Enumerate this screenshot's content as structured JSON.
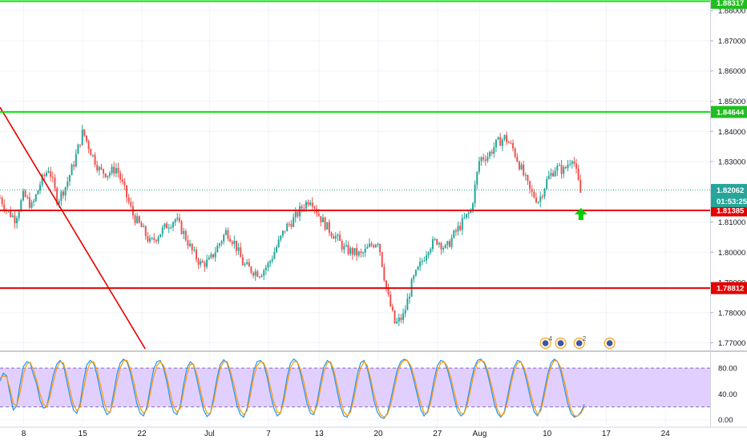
{
  "chart_data": [
    {
      "type": "candlestick",
      "title": "",
      "y_ticks": [
        "1.88000",
        "1.87000",
        "1.86000",
        "1.85000",
        "1.84000",
        "1.83000",
        "1.82000",
        "1.81000",
        "1.80000",
        "1.79000",
        "1.78000",
        "1.77000"
      ],
      "ylim": [
        1.7675,
        1.8835
      ],
      "x_ticks": [
        "8",
        "15",
        "22",
        "Jul",
        "7",
        "13",
        "20",
        "27",
        "Aug",
        "10",
        "17",
        "24"
      ],
      "x_tick_days": [
        8,
        15,
        22,
        30,
        37,
        43,
        50,
        57,
        62,
        70,
        77,
        84
      ],
      "x_range_days": [
        5.2,
        89.3
      ],
      "last_bar_day": 74,
      "grid": true,
      "price_anchors": [
        [
          5.2,
          1.818
        ],
        [
          6,
          1.814
        ],
        [
          7,
          1.811
        ],
        [
          8,
          1.819
        ],
        [
          9,
          1.815
        ],
        [
          10,
          1.823
        ],
        [
          11,
          1.828
        ],
        [
          12,
          1.817
        ],
        [
          13,
          1.822
        ],
        [
          14,
          1.83
        ],
        [
          15,
          1.84
        ],
        [
          16,
          1.833
        ],
        [
          17,
          1.827
        ],
        [
          18,
          1.826
        ],
        [
          19,
          1.828
        ],
        [
          20,
          1.82
        ],
        [
          21,
          1.812
        ],
        [
          22,
          1.808
        ],
        [
          23,
          1.803
        ],
        [
          24,
          1.806
        ],
        [
          25,
          1.809
        ],
        [
          26,
          1.811
        ],
        [
          27,
          1.806
        ],
        [
          28,
          1.8
        ],
        [
          29,
          1.796
        ],
        [
          30,
          1.797
        ],
        [
          31,
          1.802
        ],
        [
          32,
          1.807
        ],
        [
          33,
          1.803
        ],
        [
          34,
          1.796
        ],
        [
          35,
          1.794
        ],
        [
          36,
          1.793
        ],
        [
          37,
          1.796
        ],
        [
          38,
          1.802
        ],
        [
          39,
          1.808
        ],
        [
          40,
          1.811
        ],
        [
          41,
          1.815
        ],
        [
          42,
          1.818
        ],
        [
          43,
          1.812
        ],
        [
          44,
          1.808
        ],
        [
          45,
          1.805
        ],
        [
          46,
          1.801
        ],
        [
          47,
          1.8
        ],
        [
          48,
          1.799
        ],
        [
          49,
          1.802
        ],
        [
          50,
          1.804
        ],
        [
          51,
          1.787
        ],
        [
          52,
          1.776
        ],
        [
          53,
          1.779
        ],
        [
          54,
          1.79
        ],
        [
          55,
          1.796
        ],
        [
          56,
          1.802
        ],
        [
          57,
          1.804
        ],
        [
          58,
          1.801
        ],
        [
          59,
          1.806
        ],
        [
          60,
          1.81
        ],
        [
          61,
          1.814
        ],
        [
          62,
          1.831
        ],
        [
          63,
          1.832
        ],
        [
          64,
          1.836
        ],
        [
          65,
          1.838
        ],
        [
          66,
          1.834
        ],
        [
          67,
          1.827
        ],
        [
          68,
          1.82
        ],
        [
          69,
          1.817
        ],
        [
          70,
          1.824
        ],
        [
          71,
          1.828
        ],
        [
          72,
          1.827
        ],
        [
          73,
          1.832
        ],
        [
          74,
          1.819
        ]
      ],
      "horizontal_lines": [
        {
          "price": 1.8831,
          "label": "1.88317",
          "color": "#00e600"
        },
        {
          "price": 1.84644,
          "label": "1.84644",
          "color": "#00e600"
        },
        {
          "price": 1.81385,
          "label": "1.81385",
          "color": "#e60000"
        },
        {
          "price": 1.78812,
          "label": "1.78812",
          "color": "#e60000"
        }
      ],
      "trend_line": {
        "color": "#e60000",
        "from": [
          5.2,
          1.848
        ],
        "to": [
          22.4,
          1.768
        ]
      },
      "current_price": {
        "price": 1.82062,
        "label": "1.82062",
        "countdown": "01:53:25",
        "color": "#26a69a"
      },
      "signal_arrow": {
        "day": 74,
        "price": 1.8128,
        "color": "#00d000",
        "icon": "up-arrow-icon"
      },
      "event_flags": [
        {
          "day": 69.8,
          "badge": "4"
        },
        {
          "day": 71.6,
          "badge": ""
        },
        {
          "day": 73.8,
          "badge": "2"
        },
        {
          "day": 77.4,
          "badge": ""
        }
      ],
      "colors": {
        "up": "#26a69a",
        "down": "#ef5350",
        "grid": "#f0f3fa",
        "axis_text": "#131722"
      }
    },
    {
      "type": "line",
      "title": "",
      "indicator": "stochastic",
      "y_ticks": [
        "80.00",
        "40.00",
        "0.00"
      ],
      "ylim": [
        -9,
        105
      ],
      "bands": {
        "upper": 80,
        "lower": 20,
        "fill": "#e1d0ff",
        "line": "#8a6bbe"
      },
      "series": [
        {
          "color": "#2196f3",
          "values": [
            60,
            72,
            68,
            40,
            15,
            22,
            55,
            82,
            90,
            88,
            70,
            55,
            30,
            18,
            20,
            45,
            70,
            86,
            92,
            85,
            60,
            35,
            15,
            10,
            25,
            60,
            85,
            92,
            88,
            70,
            45,
            20,
            8,
            12,
            40,
            70,
            88,
            94,
            90,
            74,
            50,
            25,
            10,
            6,
            20,
            50,
            78,
            90,
            92,
            80,
            58,
            30,
            12,
            8,
            22,
            55,
            80,
            90,
            85,
            62,
            38,
            15,
            5,
            10,
            35,
            65,
            86,
            93,
            88,
            70,
            46,
            22,
            8,
            4,
            18,
            48,
            76,
            90,
            92,
            86,
            66,
            40,
            18,
            6,
            10,
            36,
            66,
            88,
            94,
            90,
            72,
            48,
            24,
            10,
            8,
            28,
            58,
            82,
            92,
            88,
            70,
            44,
            20,
            6,
            4,
            16,
            42,
            70,
            88,
            92,
            80,
            56,
            30,
            12,
            4,
            2,
            10,
            30,
            55,
            78,
            90,
            94,
            92,
            80,
            60,
            38,
            16,
            6,
            12,
            34,
            62,
            84,
            92,
            90,
            78,
            58,
            34,
            14,
            6,
            10,
            30,
            58,
            80,
            92,
            94,
            88,
            72,
            50,
            26,
            10,
            4,
            12,
            36,
            62,
            82,
            92,
            90,
            76,
            54,
            30,
            12,
            6,
            18,
            44,
            70,
            88,
            94,
            90,
            74,
            50,
            26,
            10,
            4,
            6,
            12,
            24
          ]
        },
        {
          "color": "#ff9800",
          "values": [
            65,
            68,
            66,
            48,
            25,
            22,
            42,
            70,
            86,
            89,
            78,
            60,
            40,
            24,
            20,
            36,
            60,
            80,
            90,
            88,
            70,
            45,
            24,
            14,
            20,
            46,
            74,
            88,
            90,
            78,
            56,
            32,
            14,
            12,
            30,
            58,
            80,
            92,
            92,
            80,
            60,
            36,
            18,
            10,
            16,
            40,
            66,
            84,
            90,
            84,
            66,
            42,
            20,
            12,
            18,
            44,
            70,
            86,
            86,
            70,
            48,
            24,
            10,
            10,
            28,
            56,
            80,
            90,
            90,
            76,
            56,
            32,
            14,
            8,
            14,
            38,
            66,
            84,
            90,
            88,
            74,
            50,
            28,
            12,
            10,
            28,
            56,
            80,
            90,
            90,
            78,
            58,
            34,
            16,
            10,
            22,
            48,
            74,
            88,
            90,
            76,
            54,
            30,
            12,
            6,
            12,
            32,
            60,
            80,
            90,
            84,
            64,
            40,
            20,
            8,
            4,
            8,
            22,
            46,
            70,
            86,
            92,
            92,
            84,
            68,
            46,
            26,
            10,
            10,
            26,
            52,
            76,
            88,
            90,
            82,
            66,
            44,
            22,
            10,
            10,
            24,
            48,
            72,
            88,
            92,
            90,
            78,
            58,
            36,
            16,
            6,
            10,
            28,
            54,
            76,
            88,
            90,
            80,
            62,
            40,
            20,
            8,
            14,
            36,
            62,
            82,
            92,
            90,
            80,
            60,
            36,
            16,
            6,
            6,
            10,
            20
          ]
        }
      ]
    }
  ]
}
